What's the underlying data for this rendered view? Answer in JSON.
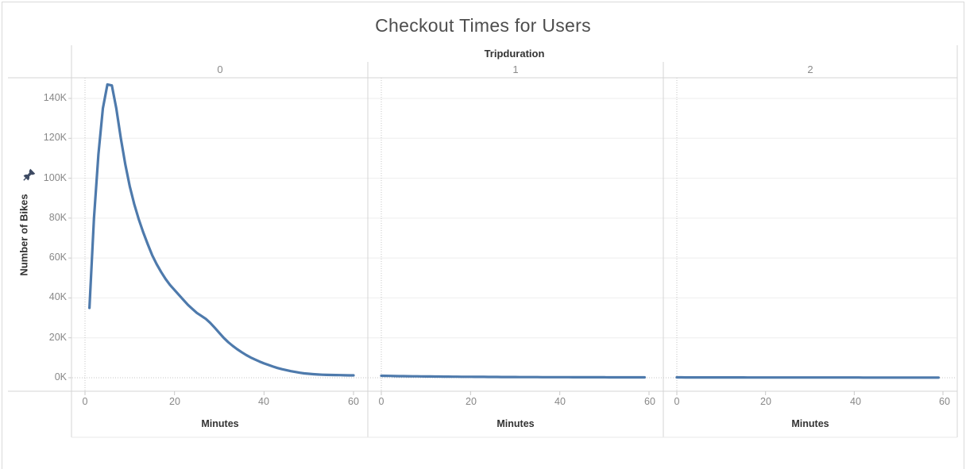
{
  "chart_data": {
    "type": "line",
    "title": "Checkout Times for Users",
    "column_field_label": "Tripduration",
    "xlabel": "Minutes",
    "ylabel": "Number of Bikes",
    "x_ticks": [
      "0",
      "20",
      "40",
      "60"
    ],
    "x_tick_values": [
      0,
      20,
      40,
      60
    ],
    "y_ticks": [
      "0K",
      "20K",
      "40K",
      "60K",
      "80K",
      "100K",
      "120K",
      "140K"
    ],
    "y_tick_values": [
      0,
      20,
      40,
      60,
      80,
      100,
      120,
      140
    ],
    "y_unit": "thousands",
    "xlim": [
      0,
      60
    ],
    "ylim": [
      0,
      150
    ],
    "grid": "horizontal-light",
    "legend": "none",
    "line_color": "#4e7aac",
    "panels": [
      {
        "label": "0",
        "x_start": 1,
        "x_step": 1,
        "values": [
          35,
          80,
          112,
          135,
          147,
          146.5,
          135,
          120,
          107,
          96,
          87,
          79.5,
          73,
          67,
          61.5,
          57,
          53,
          49.5,
          46.5,
          44,
          41.5,
          39,
          36.5,
          34.5,
          32.5,
          31,
          29.5,
          27.5,
          25,
          22.5,
          20,
          17.8,
          16,
          14.3,
          12.8,
          11.4,
          10.2,
          9.1,
          8.1,
          7.2,
          6.4,
          5.6,
          4.9,
          4.3,
          3.8,
          3.3,
          2.9,
          2.5,
          2.2,
          2.0,
          1.8,
          1.65,
          1.5,
          1.45,
          1.4,
          1.35,
          1.3,
          1.25,
          1.2,
          1.2
        ]
      },
      {
        "label": "1",
        "x_start": 0,
        "x_step": 1,
        "values": [
          1.0,
          0.95,
          0.9,
          0.85,
          0.8,
          0.78,
          0.75,
          0.72,
          0.7,
          0.68,
          0.65,
          0.63,
          0.6,
          0.58,
          0.56,
          0.54,
          0.52,
          0.5,
          0.49,
          0.47,
          0.46,
          0.44,
          0.43,
          0.42,
          0.4,
          0.39,
          0.38,
          0.37,
          0.36,
          0.35,
          0.34,
          0.33,
          0.32,
          0.31,
          0.3,
          0.3,
          0.29,
          0.28,
          0.28,
          0.27,
          0.27,
          0.26,
          0.26,
          0.25,
          0.25,
          0.24,
          0.24,
          0.23,
          0.23,
          0.22,
          0.22,
          0.21,
          0.21,
          0.2,
          0.2,
          0.2,
          0.19,
          0.19,
          0.18,
          0.18
        ]
      },
      {
        "label": "2",
        "x_start": 0,
        "x_step": 1,
        "values": [
          0.18,
          0.18,
          0.17,
          0.17,
          0.17,
          0.16,
          0.16,
          0.16,
          0.15,
          0.15,
          0.15,
          0.15,
          0.14,
          0.14,
          0.14,
          0.14,
          0.13,
          0.13,
          0.13,
          0.13,
          0.13,
          0.12,
          0.12,
          0.12,
          0.12,
          0.12,
          0.12,
          0.11,
          0.11,
          0.11,
          0.11,
          0.11,
          0.11,
          0.1,
          0.1,
          0.1,
          0.1,
          0.1,
          0.1,
          0.1,
          0.1,
          0.1,
          0.09,
          0.09,
          0.09,
          0.09,
          0.09,
          0.09,
          0.09,
          0.09,
          0.08,
          0.08,
          0.08,
          0.08,
          0.08,
          0.08,
          0.08,
          0.08,
          0.08,
          0.08
        ]
      }
    ]
  },
  "icons": {
    "pin": "pinned-axis"
  },
  "colors": {
    "line": "#4e7aac",
    "axis_rule": "#d4d4d4",
    "gridline": "#eeeeee",
    "zero_line": "#c4c4c4",
    "tick": "#c9c9c9",
    "pin": "#3e4b63"
  }
}
